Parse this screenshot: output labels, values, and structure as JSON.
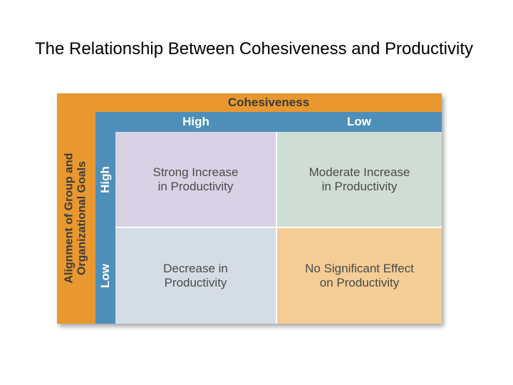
{
  "title": "The Relationship Between Cohesiveness and Productivity",
  "diagram": {
    "top_axis_label": "Cohesiveness",
    "left_axis_label_line1": "Alignment of Group and",
    "left_axis_label_line2": "Organizational Goals",
    "columns": [
      "High",
      "Low"
    ],
    "rows": [
      "High",
      "Low"
    ],
    "cells": {
      "high_high": "Strong Increase\nin Productivity",
      "high_low": "Moderate Increase\nin Productivity",
      "low_high": "Decrease in\nProductivity",
      "low_low": "No Significant Effect\non Productivity"
    },
    "colors": {
      "axis_band": "#e8982e",
      "header_band": "#4e8fba",
      "cell_high_high": "#d9d1e6",
      "cell_high_low": "#cfddd4",
      "cell_low_high": "#d4dde6",
      "cell_low_low": "#f3cd95"
    }
  }
}
